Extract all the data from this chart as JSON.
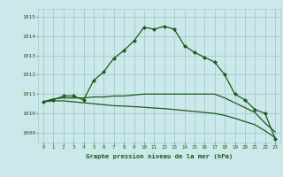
{
  "title": "Graphe pression niveau de la mer (hPa)",
  "background_color": "#cce8ea",
  "grid_color": "#a0cdd0",
  "line_color": "#1a5c1a",
  "xlim": [
    -0.5,
    23.5
  ],
  "ylim": [
    1008.5,
    1015.4
  ],
  "yticks": [
    1009,
    1010,
    1011,
    1012,
    1013,
    1014,
    1015
  ],
  "xticks": [
    0,
    1,
    2,
    3,
    4,
    5,
    6,
    7,
    8,
    9,
    10,
    11,
    12,
    13,
    14,
    15,
    16,
    17,
    18,
    19,
    20,
    21,
    22,
    23
  ],
  "series1": [
    1010.6,
    1010.7,
    1010.9,
    1010.9,
    1010.7,
    1011.7,
    1012.15,
    1012.85,
    1013.25,
    1013.75,
    1014.45,
    1014.35,
    1014.5,
    1014.35,
    1013.5,
    1013.15,
    1012.9,
    1012.65,
    1012.0,
    1011.0,
    1010.7,
    1010.2,
    1010.0,
    1008.7
  ],
  "series2": [
    1010.6,
    1010.75,
    1010.8,
    1010.8,
    1010.8,
    1010.85,
    1010.85,
    1010.9,
    1010.9,
    1010.95,
    1011.0,
    1011.0,
    1011.0,
    1011.0,
    1011.0,
    1011.0,
    1011.0,
    1011.0,
    1010.8,
    1010.55,
    1010.3,
    1010.05,
    1009.5,
    1009.05
  ],
  "series3": [
    1010.6,
    1010.65,
    1010.65,
    1010.6,
    1010.55,
    1010.5,
    1010.45,
    1010.4,
    1010.38,
    1010.35,
    1010.32,
    1010.28,
    1010.25,
    1010.2,
    1010.15,
    1010.1,
    1010.05,
    1010.0,
    1009.9,
    1009.75,
    1009.58,
    1009.42,
    1009.1,
    1008.75
  ]
}
